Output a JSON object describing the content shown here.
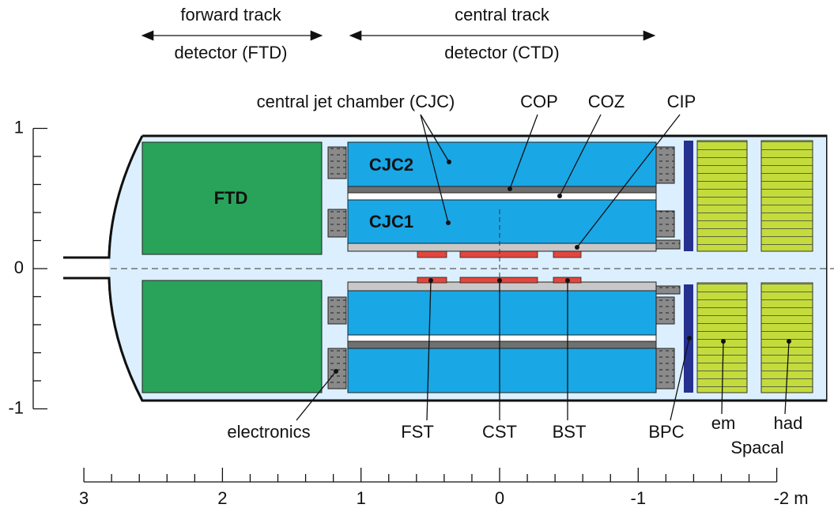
{
  "header": {
    "forward": [
      "forward track",
      "detector (FTD)"
    ],
    "central": [
      "central track",
      "detector (CTD)"
    ]
  },
  "labels": {
    "cjc": "central jet chamber (CJC)",
    "cop": "COP",
    "coz": "COZ",
    "cip": "CIP",
    "cjc2": "CJC2",
    "cjc1": "CJC1",
    "ftd": "FTD",
    "electronics": "electronics",
    "fst": "FST",
    "cst": "CST",
    "bst": "BST",
    "bpc": "BPC",
    "em": "em",
    "had": "had",
    "spacal": "Spacal"
  },
  "axes": {
    "y_ticks": [
      1,
      0,
      -1
    ],
    "x_ticks": [
      3,
      2,
      1,
      0,
      -1,
      {
        "value": -2,
        "label": "-2 m"
      }
    ]
  }
}
